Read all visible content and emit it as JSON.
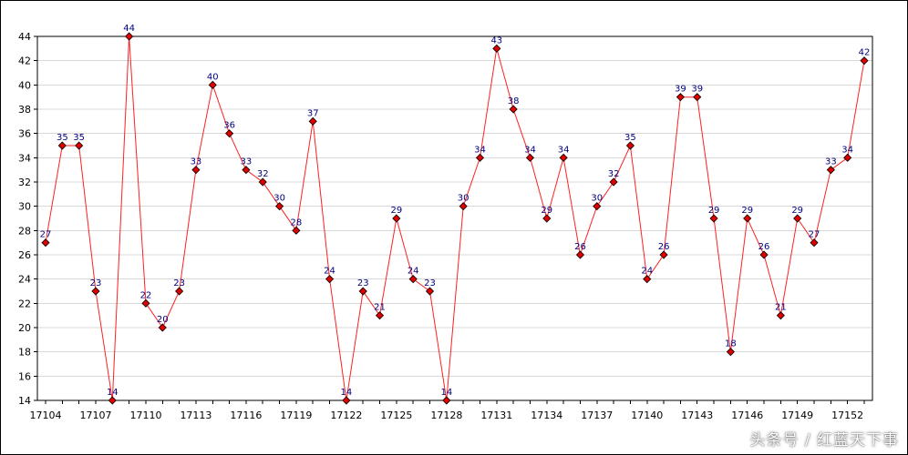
{
  "watermark": "头条号 / 红蓝天下事",
  "colors": {
    "line": "#ff2020",
    "marker_fill": "#e00000",
    "marker_stroke": "#000000",
    "data_label": "#000080",
    "grid": "#d8d8d8",
    "axis": "#000000"
  },
  "chart_data": {
    "type": "line",
    "title": "",
    "xlabel": "",
    "ylabel": "",
    "ylim": [
      14,
      44
    ],
    "y_ticks": [
      14,
      16,
      18,
      20,
      22,
      24,
      26,
      28,
      30,
      32,
      34,
      36,
      38,
      40,
      42,
      44
    ],
    "grid": "horizontal",
    "x_tick_labels": [
      "17104",
      "17107",
      "17110",
      "17113",
      "17116",
      "17119",
      "17122",
      "17125",
      "17128",
      "17131",
      "17134",
      "17137",
      "17140",
      "17143",
      "17146",
      "17149",
      "17152"
    ],
    "x": [
      17104,
      17105,
      17106,
      17107,
      17108,
      17109,
      17110,
      17111,
      17112,
      17113,
      17114,
      17115,
      17116,
      17117,
      17118,
      17119,
      17120,
      17121,
      17122,
      17123,
      17124,
      17125,
      17126,
      17127,
      17128,
      17129,
      17130,
      17131,
      17132,
      17133,
      17134,
      17135,
      17136,
      17137,
      17138,
      17139,
      17140,
      17141,
      17142,
      17143,
      17144,
      17145,
      17146,
      17147,
      17148,
      17149,
      17150,
      17151,
      17152,
      17153
    ],
    "values": [
      27,
      35,
      35,
      23,
      14,
      44,
      22,
      20,
      23,
      33,
      40,
      36,
      33,
      32,
      30,
      28,
      37,
      24,
      14,
      23,
      21,
      29,
      24,
      23,
      14,
      30,
      34,
      43,
      38,
      34,
      29,
      34,
      26,
      30,
      32,
      35,
      24,
      26,
      39,
      39,
      29,
      18,
      29,
      26,
      21,
      29,
      27,
      33,
      34,
      42
    ]
  }
}
